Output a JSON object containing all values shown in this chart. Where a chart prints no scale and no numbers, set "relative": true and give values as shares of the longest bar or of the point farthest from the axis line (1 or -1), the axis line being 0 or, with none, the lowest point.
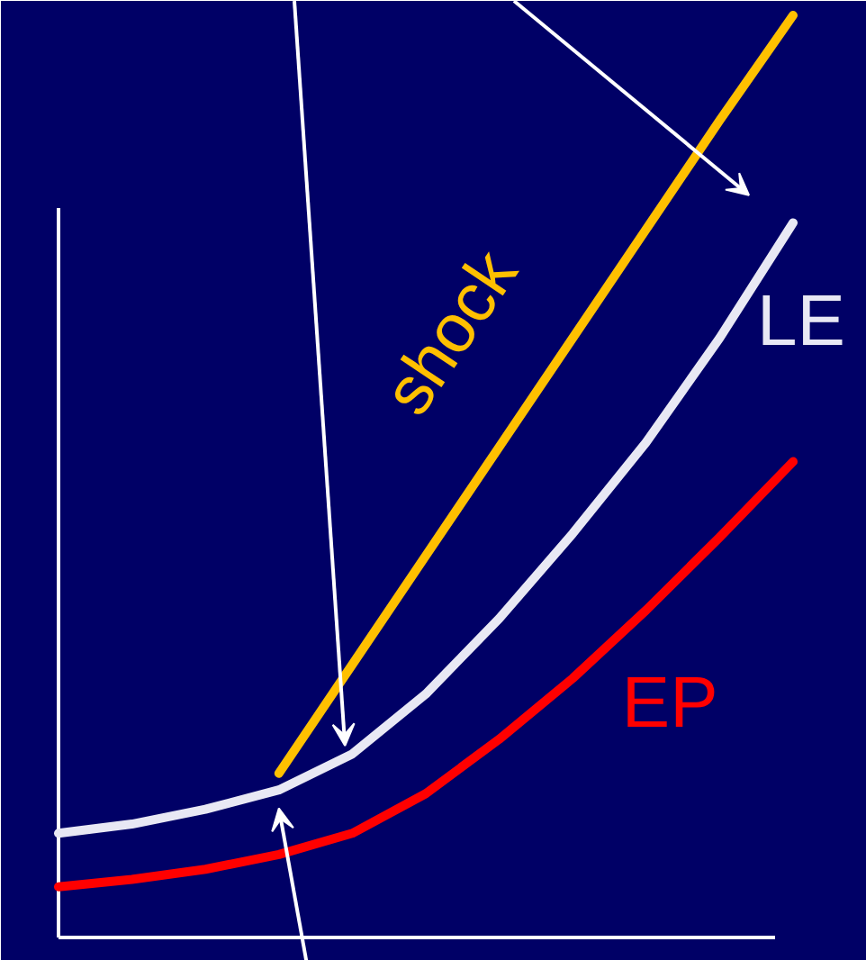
{
  "chart_data": {
    "type": "line",
    "relative": true,
    "categories": [
      null,
      null,
      null,
      null,
      null,
      null,
      null,
      null,
      null,
      null,
      null
    ],
    "series": [
      {
        "name": "shock",
        "color": "#ffc000",
        "values": [
          null,
          null,
          null,
          0.178,
          0.296,
          0.414,
          0.532,
          0.65,
          0.768,
          0.886,
          1.0
        ]
      },
      {
        "name": "LE",
        "color": "#e8e8f4",
        "values": [
          0.113,
          0.123,
          0.139,
          0.16,
          0.199,
          0.264,
          0.346,
          0.438,
          0.537,
          0.65,
          0.775
        ]
      },
      {
        "name": "EP",
        "color": "#ff0000",
        "values": [
          0.055,
          0.063,
          0.074,
          0.09,
          0.113,
          0.156,
          0.215,
          0.281,
          0.355,
          0.434,
          0.516
        ]
      }
    ],
    "grid": false
  }
}
